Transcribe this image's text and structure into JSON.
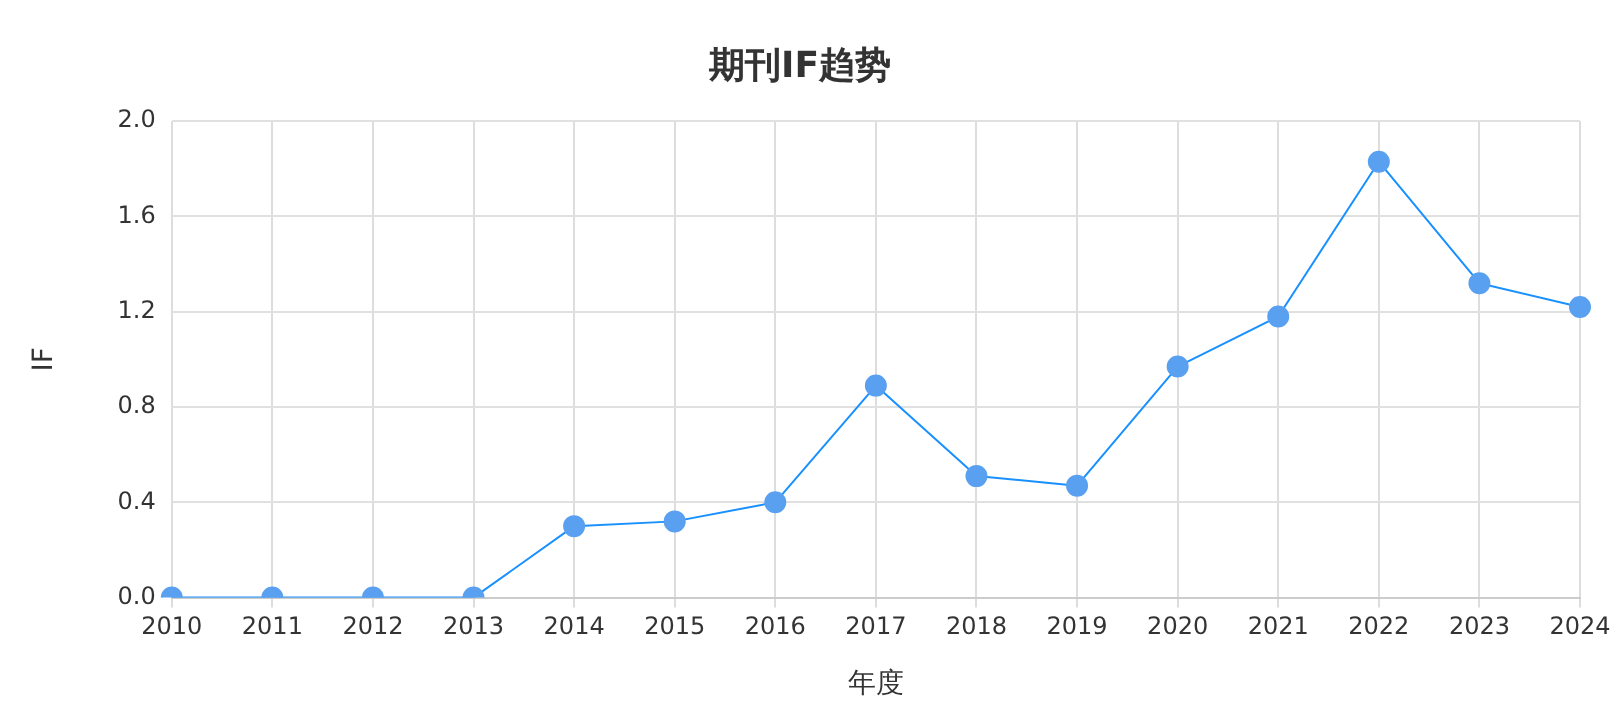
{
  "chart_data": {
    "type": "line",
    "title": "期刊IF趋势",
    "xlabel": "年度",
    "ylabel": "IF",
    "categories": [
      "2010",
      "2011",
      "2012",
      "2013",
      "2014",
      "2015",
      "2016",
      "2017",
      "2018",
      "2019",
      "2020",
      "2021",
      "2022",
      "2023",
      "2024"
    ],
    "series": [
      {
        "color": "#1890ff",
        "values": [
          0,
          0,
          0,
          0,
          0.3,
          0.32,
          0.4,
          0.89,
          0.51,
          0.47,
          0.97,
          1.18,
          1.83,
          1.32,
          1.22
        ]
      }
    ],
    "ylim": [
      0,
      2
    ],
    "yticks": [
      {
        "value": 0,
        "label": "0.0"
      },
      {
        "value": 0.4,
        "label": "0.4"
      },
      {
        "value": 0.8,
        "label": "0.8"
      },
      {
        "value": 1.2,
        "label": "1.2"
      },
      {
        "value": 1.6,
        "label": "1.6"
      },
      {
        "value": 2,
        "label": "2.0"
      }
    ],
    "grid": true,
    "marker": "circle",
    "legend": false
  }
}
